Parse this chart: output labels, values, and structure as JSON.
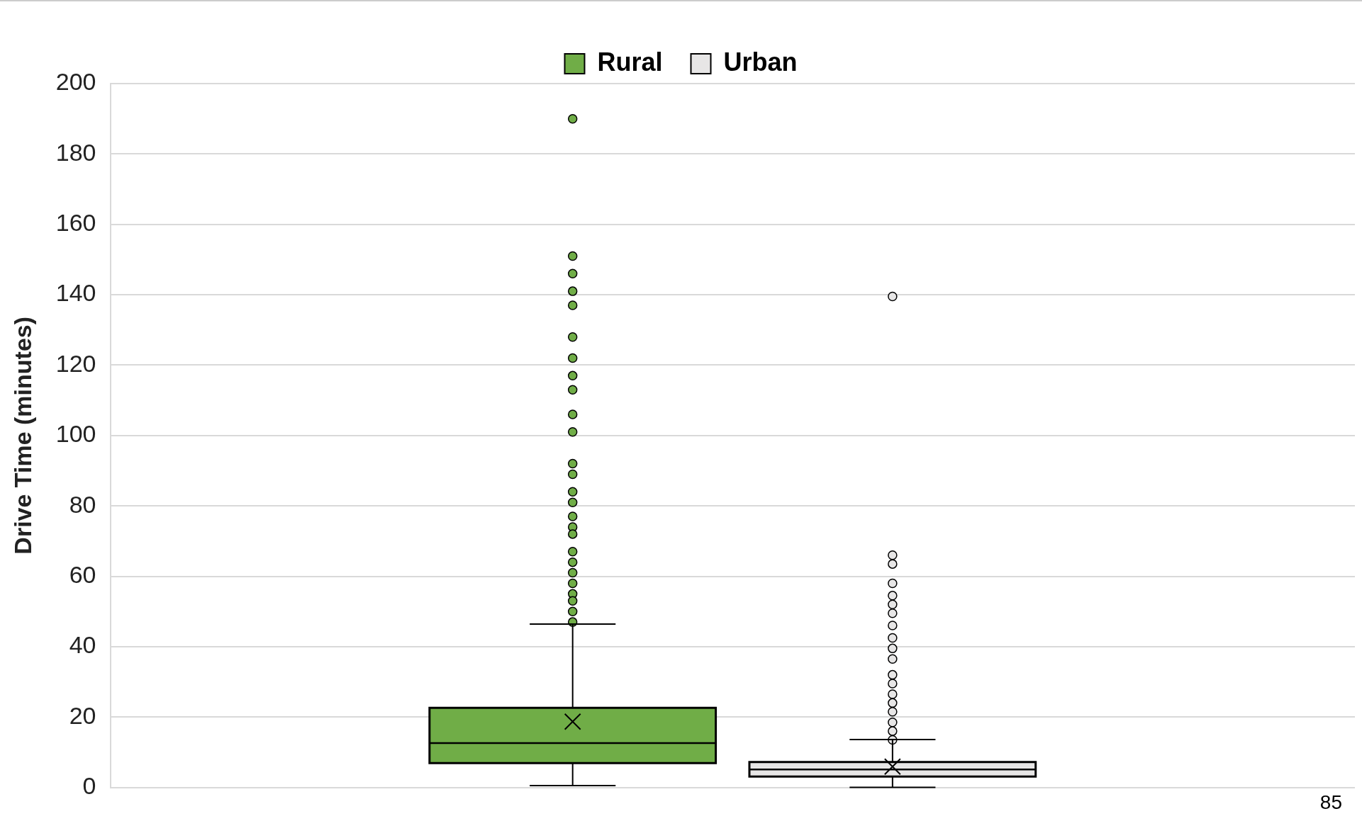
{
  "chart_data": {
    "type": "box",
    "categories": [
      null
    ],
    "ylabel": "Drive Time (minutes)",
    "ylim": [
      0,
      200
    ],
    "yticks": [
      0,
      20,
      40,
      60,
      80,
      100,
      120,
      140,
      160,
      180,
      200
    ],
    "grid": "y",
    "legend": "top",
    "marker": "circle",
    "annotations": [
      "85"
    ],
    "series": [
      {
        "name": "Rural",
        "color": "#70ad47",
        "boxes": [
          {
            "low": 0.5,
            "q1": 6.9,
            "median": 12.6,
            "q3": 22.6,
            "high": 46.4,
            "mean": 18.7,
            "outliers": [
              190,
              151,
              146,
              141,
              137,
              128,
              122,
              117,
              113,
              106,
              101,
              92,
              89,
              84,
              81,
              77,
              74,
              72,
              67,
              64,
              61,
              58,
              55,
              53,
              50,
              47
            ]
          }
        ]
      },
      {
        "name": "Urban",
        "color": "#e7e6e6",
        "boxes": [
          {
            "low": 0,
            "q1": 3.1,
            "median": 5.1,
            "q3": 7.2,
            "high": 13.6,
            "mean": 5.9,
            "outliers": [
              139.5,
              66,
              63.5,
              58,
              54.5,
              52,
              49.5,
              46,
              42.5,
              39.5,
              36.5,
              32,
              29.5,
              26.5,
              24,
              21.5,
              18.5,
              16,
              13.5
            ]
          }
        ]
      }
    ]
  }
}
